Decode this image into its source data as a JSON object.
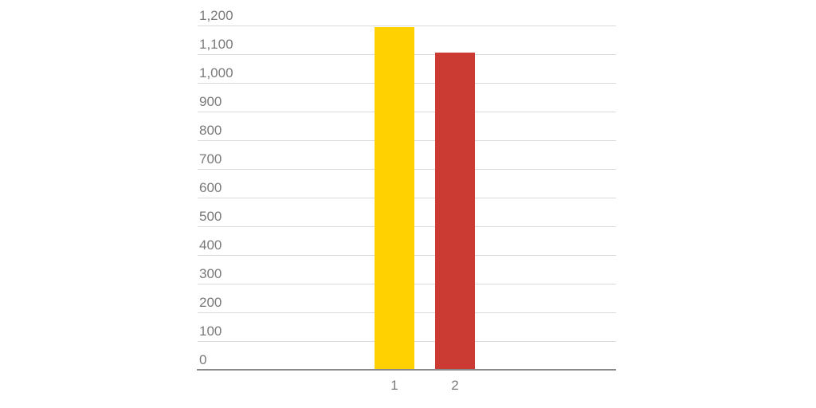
{
  "chart_data": {
    "type": "bar",
    "title": "",
    "xlabel": "",
    "ylabel": "",
    "categories": [
      "1",
      "2"
    ],
    "values": [
      1195,
      1105
    ],
    "bar_colors": [
      "#ffd100",
      "#cb3a33"
    ],
    "ylim": [
      0,
      1200
    ],
    "ytick_interval": 100,
    "ytick_labels": [
      "0",
      "100",
      "200",
      "300",
      "400",
      "500",
      "600",
      "700",
      "800",
      "900",
      "1,000",
      "1,100",
      "1,200"
    ],
    "grid": true,
    "legend": "none",
    "gridline_color": "#d9d9d9",
    "axis_line_color": "#8a8a8a",
    "label_color": "#7a7a7a",
    "background": "#ffffff"
  }
}
